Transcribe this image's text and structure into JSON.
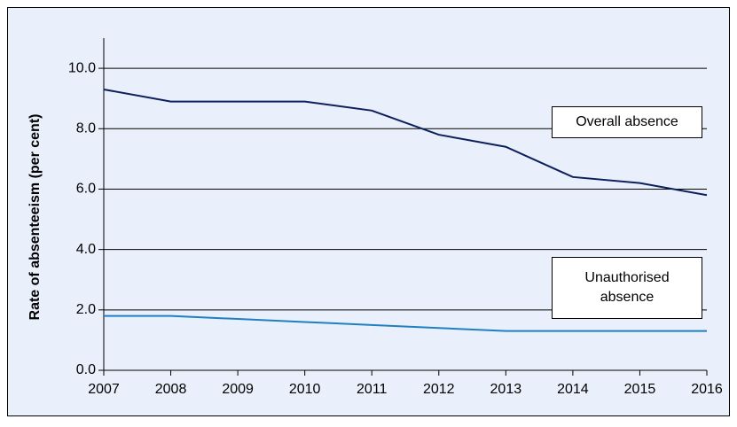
{
  "chart_data": {
    "type": "line",
    "y_label": "Rate of absenteeism (per cent)",
    "x": [
      2007,
      2008,
      2009,
      2010,
      2011,
      2012,
      2013,
      2014,
      2015,
      2016
    ],
    "xlim": [
      2007,
      2016
    ],
    "xticks": [
      2007,
      2008,
      2009,
      2010,
      2011,
      2012,
      2013,
      2014,
      2015,
      2016
    ],
    "ylim": [
      0,
      11
    ],
    "yticks": [
      {
        "value": 0,
        "label": "0.0"
      },
      {
        "value": 2,
        "label": "2.0"
      },
      {
        "value": 4,
        "label": "4.0"
      },
      {
        "value": 6,
        "label": "6.0"
      },
      {
        "value": 8,
        "label": "8.0"
      },
      {
        "value": 10,
        "label": "10.0"
      }
    ],
    "grid": true,
    "series": [
      {
        "name": "Overall absence",
        "color": "#0d1f5c",
        "values": [
          9.3,
          8.9,
          8.9,
          8.9,
          8.6,
          7.8,
          7.4,
          6.4,
          6.2,
          5.8
        ]
      },
      {
        "name": "Unauthorised absence",
        "color": "#1f7fc1",
        "values": [
          1.8,
          1.8,
          1.7,
          1.6,
          1.5,
          1.4,
          1.3,
          1.3,
          1.3,
          1.3
        ]
      }
    ]
  }
}
